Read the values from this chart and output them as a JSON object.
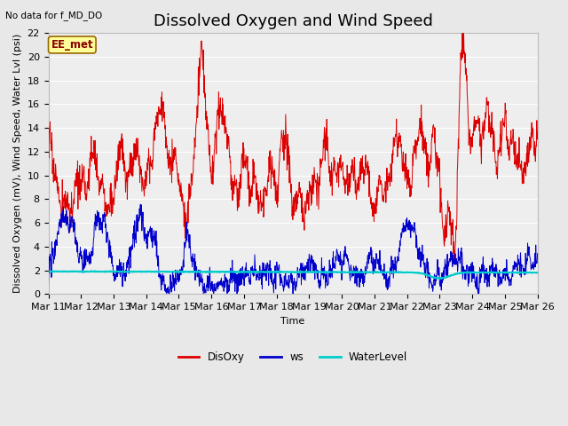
{
  "title": "Dissolved Oxygen and Wind Speed",
  "xlabel": "Time",
  "ylabel": "Dissolved Oxygen (mV), Wind Speed, Water Lvl (psi)",
  "top_left_note": "No data for f_MD_DO",
  "box_label": "EE_met",
  "ylim": [
    0,
    22
  ],
  "yticks": [
    0,
    2,
    4,
    6,
    8,
    10,
    12,
    14,
    16,
    18,
    20,
    22
  ],
  "xtick_labels": [
    "Mar 11",
    "Mar 12",
    "Mar 13",
    "Mar 14",
    "Mar 15",
    "Mar 16",
    "Mar 17",
    "Mar 18",
    "Mar 19",
    "Mar 20",
    "Mar 21",
    "Mar 22",
    "Mar 23",
    "Mar 24",
    "Mar 25",
    "Mar 26"
  ],
  "disoxy_color": "#dd0000",
  "ws_color": "#0000cc",
  "wl_color": "#00cccc",
  "legend_labels": [
    "DisOxy",
    "ws",
    "WaterLevel"
  ],
  "bg_color": "#e8e8e8",
  "plot_bg_color": "#eeeeee",
  "grid_color": "#ffffff",
  "title_fontsize": 13,
  "label_fontsize": 8,
  "tick_fontsize": 8,
  "box_facecolor": "#ffff99",
  "box_edgecolor": "#996600",
  "box_textcolor": "#8B0000"
}
